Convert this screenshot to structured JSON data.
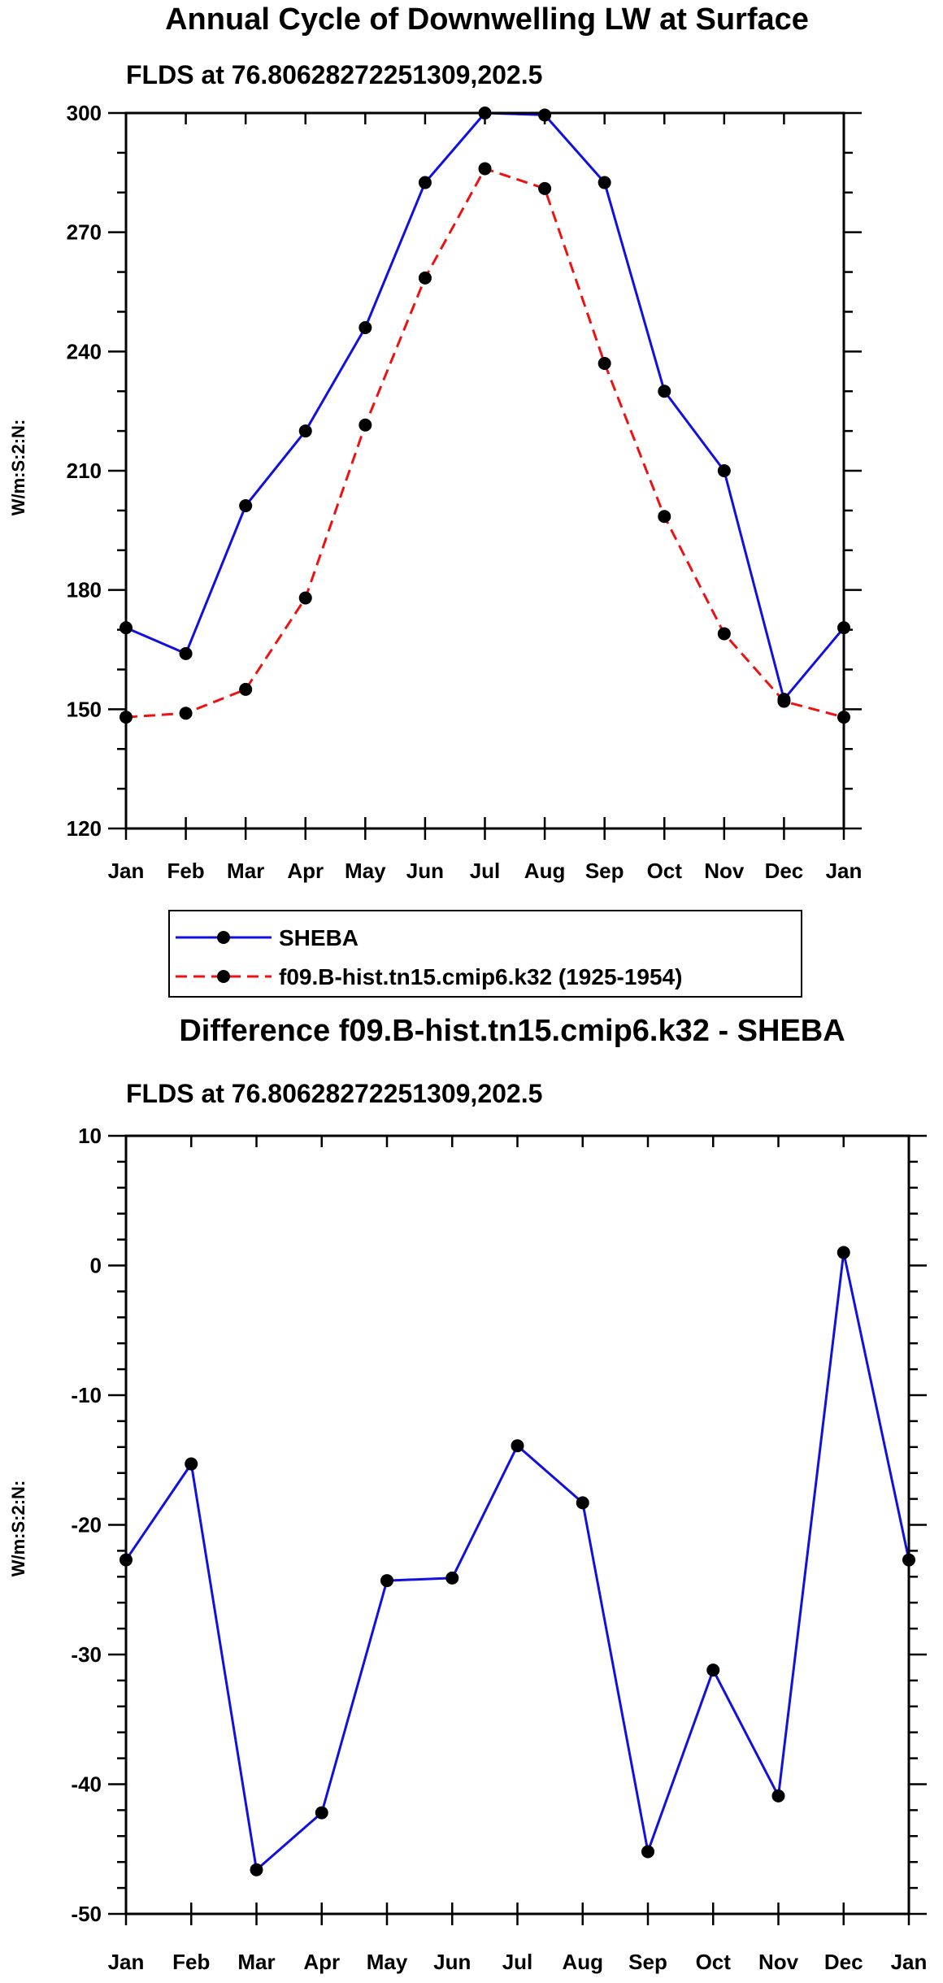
{
  "chart_data": [
    {
      "type": "line",
      "title": "Annual Cycle of Downwelling LW at Surface",
      "subtitle": "FLDS at 76.80628272251309,202.5",
      "ylabel": "W/m:S:2:N:",
      "xlabel": "",
      "categories": [
        "Jan",
        "Feb",
        "Mar",
        "Apr",
        "May",
        "Jun",
        "Jul",
        "Aug",
        "Sep",
        "Oct",
        "Nov",
        "Dec",
        "Jan"
      ],
      "ylim": [
        120,
        300
      ],
      "yticks": [
        "120",
        "150",
        "180",
        "210",
        "240",
        "270",
        "300"
      ],
      "series": [
        {
          "name": "SHEBA",
          "color": "#1010e0",
          "dash": "solid",
          "values": [
            170.5,
            164,
            201.2,
            220,
            246,
            282.5,
            300,
            299.5,
            282.5,
            230,
            210,
            152.5,
            170.5
          ]
        },
        {
          "name": "f09.B-hist.tn15.cmip6.k32 (1925-1954)",
          "color": "#ee1111",
          "dash": "dashed",
          "values": [
            148,
            149,
            155,
            178,
            221.5,
            258.5,
            286,
            281,
            237,
            198.5,
            169,
            152,
            148
          ]
        }
      ],
      "legend": {
        "position": "bottom-left"
      }
    },
    {
      "type": "line",
      "title": "Difference f09.B-hist.tn15.cmip6.k32 - SHEBA",
      "subtitle": "FLDS at 76.80628272251309,202.5",
      "ylabel": "W/m:S:2:N:",
      "xlabel": "",
      "categories": [
        "Jan",
        "Feb",
        "Mar",
        "Apr",
        "May",
        "Jun",
        "Jul",
        "Aug",
        "Sep",
        "Oct",
        "Nov",
        "Dec",
        "Jan"
      ],
      "ylim": [
        -50,
        10
      ],
      "yticks": [
        "-50",
        "-40",
        "-30",
        "-20",
        "-10",
        "0",
        "10"
      ],
      "series": [
        {
          "name": "Difference",
          "color": "#1010e0",
          "dash": "solid",
          "values": [
            -22.7,
            -15.3,
            -46.6,
            -42.2,
            -24.3,
            -24.1,
            -13.9,
            -18.3,
            -45.2,
            -31.2,
            -40.9,
            1.0,
            -22.7
          ]
        }
      ]
    }
  ]
}
